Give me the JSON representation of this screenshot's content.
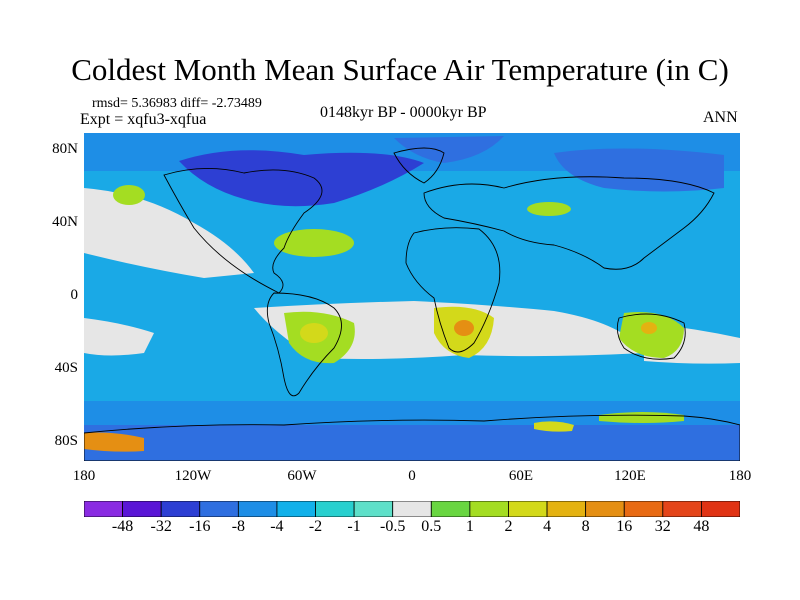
{
  "title": "Coldest Month Mean Surface Air Temperature (in C)",
  "stats_line": "rmsd= 5.36983 diff= -2.73489",
  "experiment_line": "Expt = xqfu3-xqfua",
  "period": "0148kyr BP - 0000kyr BP",
  "season": "ANN",
  "lat_labels": [
    "80N",
    "40N",
    "0",
    "40S",
    "80S"
  ],
  "lon_labels": [
    "180",
    "120W",
    "60W",
    "0",
    "60E",
    "120E",
    "180"
  ],
  "colorbar": {
    "labels": [
      "-48",
      "-32",
      "-16",
      "-8",
      "-4",
      "-2",
      "-1",
      "-0.5",
      "0.5",
      "1",
      "2",
      "4",
      "8",
      "16",
      "32",
      "48"
    ],
    "colors": [
      "#8a2be2",
      "#5a16d6",
      "#2d3fd3",
      "#2f6fe0",
      "#1e8ee6",
      "#12b1ea",
      "#28d0cf",
      "#5ee0c9",
      "#e6e6e6",
      "#69d641",
      "#a4dd22",
      "#d3d91a",
      "#e4b211",
      "#e58f13",
      "#e86a13",
      "#e4451a",
      "#e03314"
    ]
  },
  "colors": {
    "ocean": "#1aa9e6",
    "neutral": "#e6e6e6",
    "coast": "#000000"
  }
}
